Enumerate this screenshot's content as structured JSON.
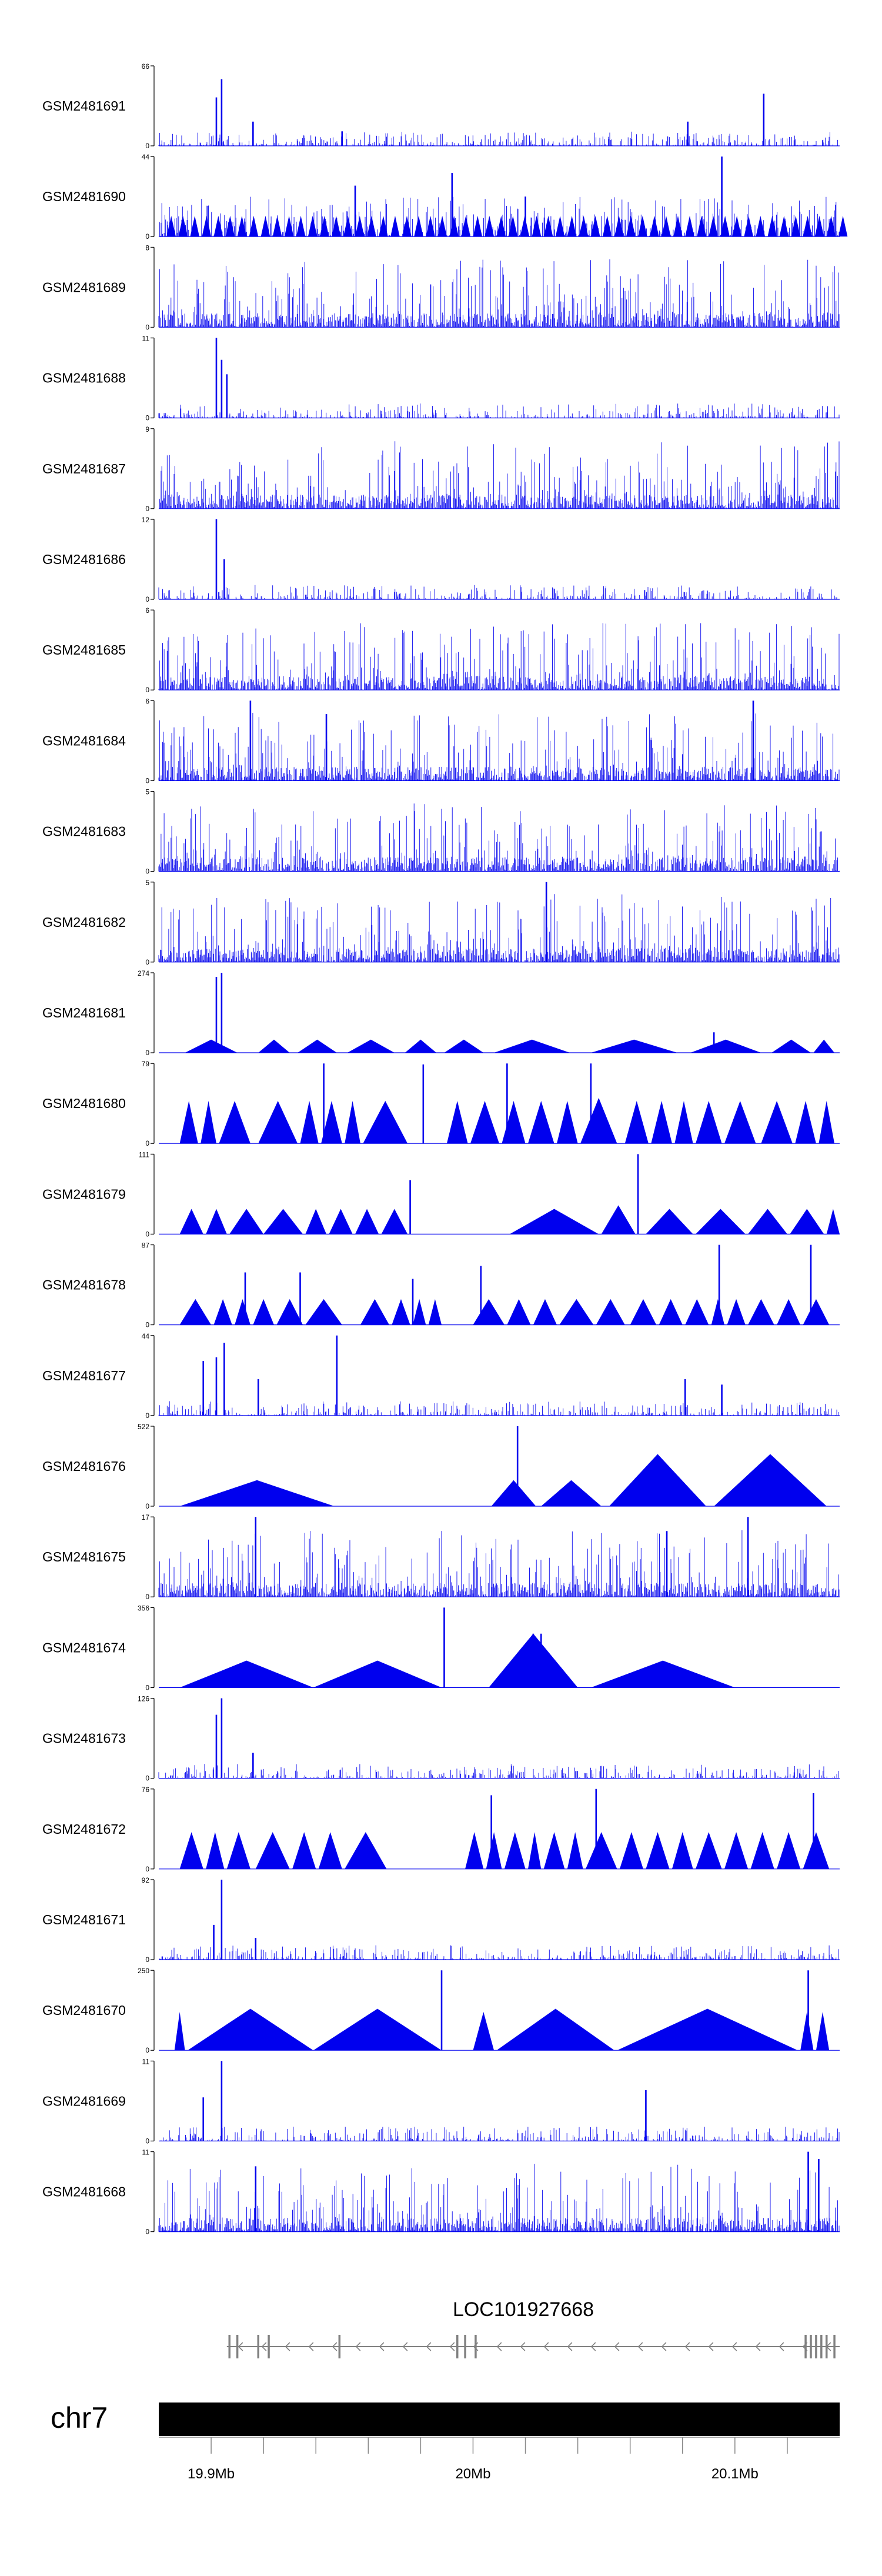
{
  "colors": {
    "signal": "#0000ee",
    "axis": "#000000",
    "gene": "#808080",
    "chromosome": "#000000",
    "background": "#ffffff"
  },
  "chart_data": {
    "type": "area",
    "title": "",
    "x_range": [
      19.88,
      20.14
    ],
    "x_unit": "Mb",
    "tracks": [
      {
        "name": "GSM2481691",
        "ymax": 66,
        "pattern": "noise",
        "peaks": [
          [
            19.902,
            40
          ],
          [
            19.904,
            55
          ],
          [
            19.916,
            20
          ],
          [
            19.95,
            12
          ],
          [
            20.082,
            20
          ],
          [
            20.111,
            43
          ]
        ]
      },
      {
        "name": "GSM2481690",
        "ymax": 44,
        "pattern": "spiky",
        "peaks": [
          [
            20.095,
            44
          ],
          [
            19.992,
            35
          ],
          [
            19.955,
            28
          ],
          [
            20.02,
            22
          ]
        ]
      },
      {
        "name": "GSM2481689",
        "ymax": 8,
        "pattern": "dense"
      },
      {
        "name": "GSM2481688",
        "ymax": 11,
        "pattern": "noise",
        "peaks": [
          [
            19.902,
            11
          ],
          [
            19.904,
            8
          ],
          [
            19.906,
            6
          ]
        ]
      },
      {
        "name": "GSM2481687",
        "ymax": 9,
        "pattern": "dense"
      },
      {
        "name": "GSM2481686",
        "ymax": 12,
        "pattern": "noise",
        "peaks": [
          [
            19.902,
            12
          ],
          [
            19.905,
            6
          ]
        ]
      },
      {
        "name": "GSM2481685",
        "ymax": 6,
        "pattern": "dense"
      },
      {
        "name": "GSM2481684",
        "ymax": 6,
        "pattern": "dense",
        "peaks": [
          [
            19.915,
            6
          ],
          [
            19.944,
            5
          ],
          [
            20.107,
            6
          ]
        ]
      },
      {
        "name": "GSM2481683",
        "ymax": 5,
        "pattern": "dense"
      },
      {
        "name": "GSM2481682",
        "ymax": 5,
        "pattern": "dense",
        "peaks": [
          [
            20.028,
            5
          ]
        ]
      },
      {
        "name": "GSM2481681",
        "ymax": 274,
        "pattern": "triangles",
        "segments": [
          [
            19.89,
            19.91,
            45
          ],
          [
            19.918,
            19.93,
            45
          ],
          [
            19.933,
            19.948,
            45
          ],
          [
            19.952,
            19.97,
            45
          ],
          [
            19.974,
            19.986,
            45
          ],
          [
            19.989,
            20.004,
            45
          ],
          [
            20.008,
            20.037,
            45
          ],
          [
            20.045,
            20.078,
            45
          ],
          [
            20.083,
            20.11,
            45
          ],
          [
            20.114,
            20.129,
            45
          ],
          [
            20.13,
            20.138,
            45
          ]
        ],
        "peaks": [
          [
            19.902,
            260
          ],
          [
            19.904,
            274
          ],
          [
            20.092,
            70
          ]
        ]
      },
      {
        "name": "GSM2481680",
        "ymax": 79,
        "pattern": "triangles",
        "segments": [
          [
            19.888,
            19.895,
            42
          ],
          [
            19.896,
            19.902,
            42
          ],
          [
            19.903,
            19.915,
            42
          ],
          [
            19.918,
            19.933,
            42
          ],
          [
            19.934,
            19.941,
            42
          ],
          [
            19.942,
            19.95,
            42
          ],
          [
            19.951,
            19.957,
            42
          ],
          [
            19.958,
            19.975,
            42
          ],
          [
            19.99,
            19.998,
            42
          ],
          [
            19.999,
            20.01,
            42
          ],
          [
            20.011,
            20.02,
            42
          ],
          [
            20.021,
            20.031,
            42
          ],
          [
            20.032,
            20.04,
            42
          ],
          [
            20.041,
            20.055,
            45
          ],
          [
            20.058,
            20.067,
            42
          ],
          [
            20.068,
            20.076,
            42
          ],
          [
            20.077,
            20.084,
            42
          ],
          [
            20.085,
            20.095,
            42
          ],
          [
            20.096,
            20.108,
            42
          ],
          [
            20.11,
            20.122,
            42
          ],
          [
            20.123,
            20.131,
            42
          ],
          [
            20.132,
            20.138,
            42
          ]
        ],
        "peaks": [
          [
            19.943,
            79
          ],
          [
            19.981,
            78
          ],
          [
            20.013,
            79
          ],
          [
            20.045,
            79
          ]
        ]
      },
      {
        "name": "GSM2481679",
        "ymax": 111,
        "pattern": "triangles",
        "segments": [
          [
            19.888,
            19.897,
            35
          ],
          [
            19.898,
            19.906,
            35
          ],
          [
            19.907,
            19.92,
            35
          ],
          [
            19.92,
            19.935,
            35
          ],
          [
            19.936,
            19.944,
            35
          ],
          [
            19.945,
            19.954,
            35
          ],
          [
            19.955,
            19.964,
            35
          ],
          [
            19.965,
            19.975,
            35
          ],
          [
            20.014,
            20.048,
            35
          ],
          [
            20.049,
            20.062,
            40
          ],
          [
            20.066,
            20.084,
            35
          ],
          [
            20.085,
            20.104,
            35
          ],
          [
            20.105,
            20.12,
            35
          ],
          [
            20.121,
            20.134,
            35
          ],
          [
            20.135,
            20.14,
            35
          ]
        ],
        "peaks": [
          [
            19.976,
            75
          ],
          [
            20.063,
            111
          ]
        ]
      },
      {
        "name": "GSM2481678",
        "ymax": 87,
        "pattern": "triangles",
        "segments": [
          [
            19.888,
            19.9,
            28
          ],
          [
            19.901,
            19.908,
            28
          ],
          [
            19.909,
            19.915,
            28
          ],
          [
            19.916,
            19.924,
            28
          ],
          [
            19.925,
            19.935,
            28
          ],
          [
            19.936,
            19.95,
            28
          ],
          [
            19.957,
            19.968,
            28
          ],
          [
            19.969,
            19.976,
            28
          ],
          [
            19.977,
            19.982,
            28
          ],
          [
            19.983,
            19.988,
            28
          ],
          [
            20.0,
            20.012,
            28
          ],
          [
            20.013,
            20.022,
            28
          ],
          [
            20.023,
            20.032,
            28
          ],
          [
            20.033,
            20.046,
            28
          ],
          [
            20.047,
            20.058,
            28
          ],
          [
            20.06,
            20.07,
            28
          ],
          [
            20.071,
            20.08,
            28
          ],
          [
            20.081,
            20.09,
            28
          ],
          [
            20.091,
            20.096,
            28
          ],
          [
            20.097,
            20.104,
            28
          ],
          [
            20.105,
            20.115,
            28
          ],
          [
            20.116,
            20.125,
            28
          ],
          [
            20.126,
            20.136,
            28
          ]
        ],
        "peaks": [
          [
            19.913,
            57
          ],
          [
            19.934,
            57
          ],
          [
            19.977,
            50
          ],
          [
            20.003,
            64
          ],
          [
            20.094,
            87
          ],
          [
            20.129,
            87
          ]
        ]
      },
      {
        "name": "GSM2481677",
        "ymax": 44,
        "pattern": "noise",
        "peaks": [
          [
            19.897,
            30
          ],
          [
            19.902,
            32
          ],
          [
            19.905,
            40
          ],
          [
            19.918,
            20
          ],
          [
            19.948,
            44
          ],
          [
            20.081,
            20
          ],
          [
            20.095,
            17
          ]
        ]
      },
      {
        "name": "GSM2481676",
        "ymax": 522,
        "pattern": "triangles",
        "segments": [
          [
            19.888,
            19.947,
            170
          ],
          [
            20.007,
            20.024,
            170
          ],
          [
            20.026,
            20.049,
            170
          ],
          [
            20.052,
            20.089,
            340
          ],
          [
            20.092,
            20.135,
            340
          ]
        ],
        "peaks": [
          [
            20.017,
            522
          ]
        ]
      },
      {
        "name": "GSM2481675",
        "ymax": 17,
        "pattern": "dense",
        "peaks": [
          [
            19.917,
            17
          ],
          [
            20.074,
            14
          ],
          [
            20.105,
            17
          ]
        ]
      },
      {
        "name": "GSM2481674",
        "ymax": 356,
        "pattern": "triangles",
        "segments": [
          [
            19.888,
            19.939,
            120
          ],
          [
            19.939,
            19.988,
            120
          ],
          [
            20.006,
            20.04,
            240
          ],
          [
            20.045,
            20.1,
            120
          ]
        ],
        "peaks": [
          [
            19.989,
            356
          ],
          [
            20.023,
            240
          ],
          [
            20.026,
            240
          ]
        ]
      },
      {
        "name": "GSM2481673",
        "ymax": 126,
        "pattern": "noise",
        "peaks": [
          [
            19.902,
            100
          ],
          [
            19.904,
            126
          ],
          [
            19.916,
            40
          ]
        ]
      },
      {
        "name": "GSM2481672",
        "ymax": 76,
        "pattern": "triangles",
        "segments": [
          [
            19.888,
            19.897,
            35
          ],
          [
            19.898,
            19.905,
            35
          ],
          [
            19.906,
            19.915,
            35
          ],
          [
            19.917,
            19.93,
            35
          ],
          [
            19.931,
            19.94,
            35
          ],
          [
            19.941,
            19.95,
            35
          ],
          [
            19.951,
            19.967,
            35
          ],
          [
            19.997,
            20.004,
            35
          ],
          [
            20.005,
            20.011,
            35
          ],
          [
            20.012,
            20.02,
            35
          ],
          [
            20.021,
            20.026,
            35
          ],
          [
            20.027,
            20.035,
            35
          ],
          [
            20.036,
            20.042,
            35
          ],
          [
            20.043,
            20.055,
            35
          ],
          [
            20.056,
            20.065,
            35
          ],
          [
            20.066,
            20.075,
            35
          ],
          [
            20.076,
            20.084,
            35
          ],
          [
            20.085,
            20.095,
            35
          ],
          [
            20.096,
            20.105,
            35
          ],
          [
            20.106,
            20.115,
            35
          ],
          [
            20.116,
            20.125,
            35
          ],
          [
            20.126,
            20.136,
            35
          ]
        ],
        "peaks": [
          [
            20.007,
            70
          ],
          [
            20.047,
            76
          ],
          [
            20.13,
            72
          ]
        ]
      },
      {
        "name": "GSM2481671",
        "ymax": 92,
        "pattern": "noise",
        "peaks": [
          [
            19.901,
            40
          ],
          [
            19.904,
            92
          ],
          [
            19.917,
            25
          ]
        ]
      },
      {
        "name": "GSM2481670",
        "ymax": 250,
        "pattern": "triangles",
        "segments": [
          [
            19.886,
            19.89,
            120
          ],
          [
            19.891,
            19.939,
            130
          ],
          [
            19.939,
            19.988,
            130
          ],
          [
            20.0,
            20.008,
            120
          ],
          [
            20.009,
            20.054,
            130
          ],
          [
            20.055,
            20.124,
            130
          ],
          [
            20.125,
            20.13,
            120
          ],
          [
            20.131,
            20.136,
            120
          ]
        ],
        "peaks": [
          [
            19.988,
            250
          ],
          [
            20.128,
            250
          ]
        ]
      },
      {
        "name": "GSM2481669",
        "ymax": 11,
        "pattern": "noise",
        "peaks": [
          [
            19.904,
            11
          ],
          [
            19.897,
            6
          ],
          [
            20.066,
            7
          ]
        ]
      },
      {
        "name": "GSM2481668",
        "ymax": 11,
        "pattern": "dense",
        "peaks": [
          [
            20.128,
            11
          ],
          [
            20.132,
            10
          ],
          [
            19.917,
            9
          ]
        ]
      }
    ],
    "gene": {
      "label": "LOC101927668",
      "strand": "-",
      "start": 19.906,
      "end": 20.14,
      "exons": [
        19.907,
        19.91,
        19.918,
        19.922,
        19.949,
        19.994,
        19.997,
        20.001,
        20.127,
        20.129,
        20.131,
        20.133,
        20.135,
        20.138
      ]
    },
    "ideogram": {
      "label": "chr7",
      "ticks": [
        19.9,
        19.92,
        19.94,
        19.96,
        19.98,
        20.0,
        20.02,
        20.04,
        20.06,
        20.08,
        20.1,
        20.12
      ],
      "tick_labels": [
        {
          "value": 19.9,
          "text": "19.9Mb"
        },
        {
          "value": 20.0,
          "text": "20Mb"
        },
        {
          "value": 20.1,
          "text": "20.1Mb"
        }
      ]
    }
  }
}
